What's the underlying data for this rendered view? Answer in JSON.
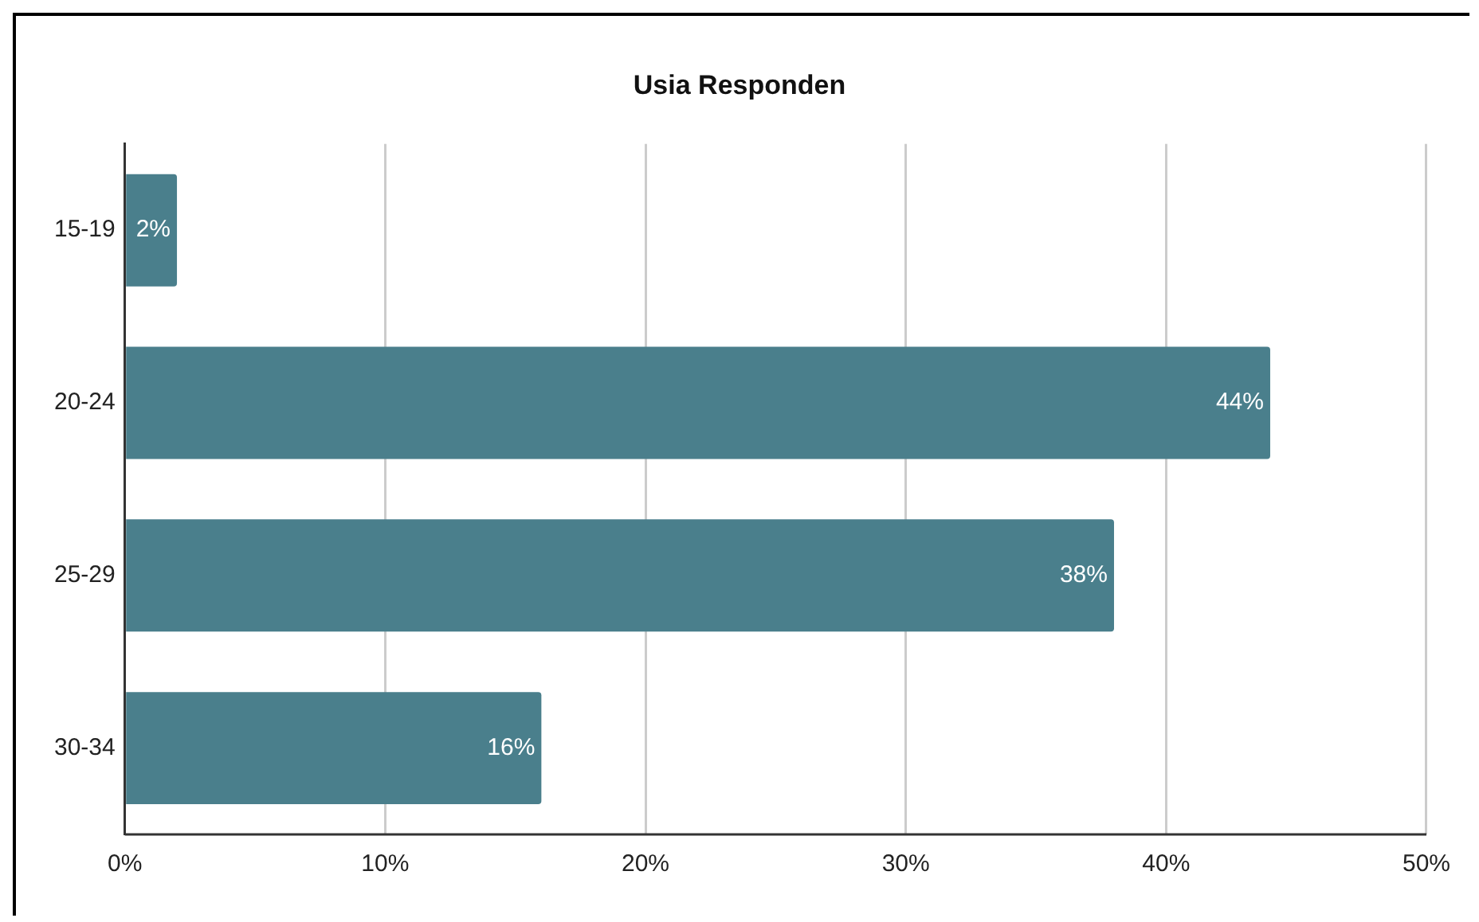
{
  "chart_data": {
    "type": "bar",
    "orientation": "horizontal",
    "title": "Usia Responden",
    "categories": [
      "15-19",
      "20-24",
      "25-29",
      "30-34"
    ],
    "values": [
      2,
      44,
      38,
      16
    ],
    "color": "#4a7f8c",
    "value_labels": [
      "2%",
      "44%",
      "38%",
      "16%"
    ],
    "xlim": [
      0,
      50
    ],
    "xticks": [
      {
        "value": 0,
        "label": "0%"
      },
      {
        "value": 10,
        "label": "10%"
      },
      {
        "value": 20,
        "label": "20%"
      },
      {
        "value": 30,
        "label": "30%"
      },
      {
        "value": 40,
        "label": "40%"
      },
      {
        "value": 50,
        "label": "50%"
      }
    ],
    "grid": "x",
    "legend": false
  }
}
